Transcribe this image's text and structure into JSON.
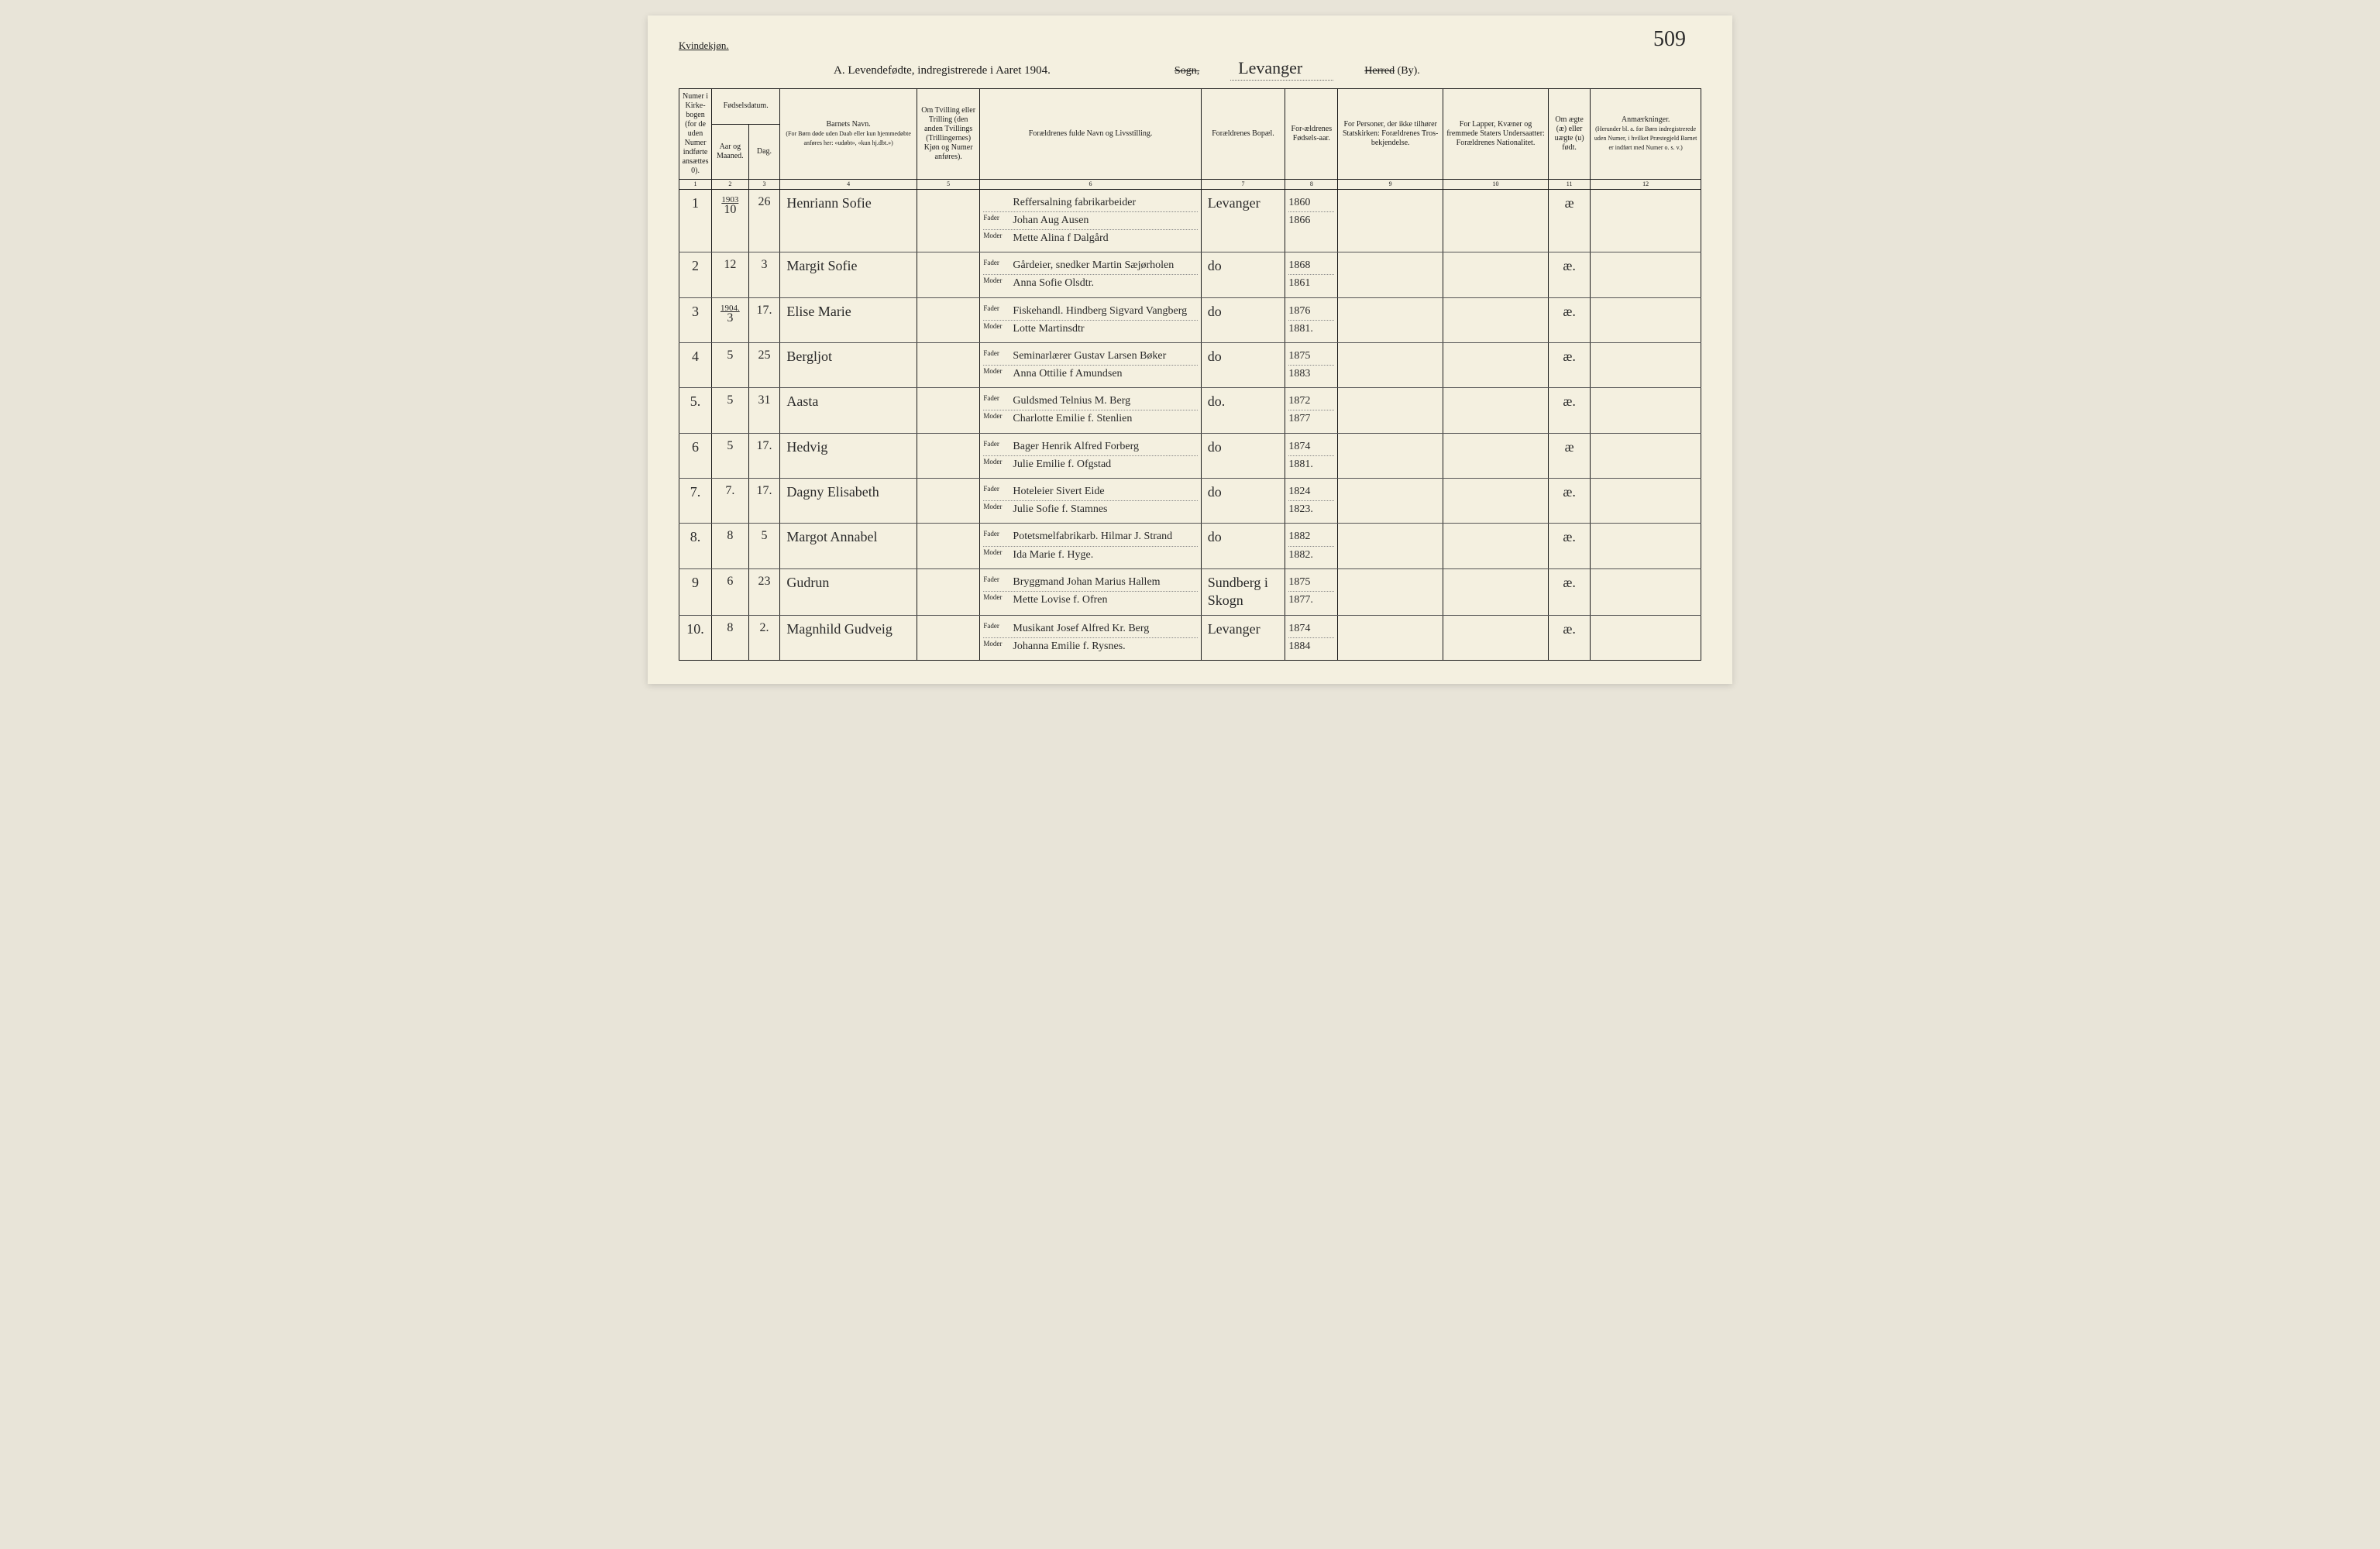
{
  "page_number": "509",
  "gender_label": "Kvindekjøn.",
  "title": "A. Levendefødte, indregistrerede i Aaret 1904.",
  "sogn_label": "Sogn,",
  "parish_name": "Levanger",
  "herred_label_strike": "Herred",
  "herred_label_by": "(By).",
  "headers": {
    "col1": "Numer i Kirke-bogen (for de uden Numer indførte ansættes 0).",
    "col2_group": "Fødselsdatum.",
    "col2": "Aar og Maaned.",
    "col3": "Dag.",
    "col4": "Barnets Navn.",
    "col4_sub": "(For Børn døde uden Daab eller kun hjemmedøbte anføres her: «udøbt», «kun hj.dbt.»)",
    "col5": "Om Tvilling eller Trilling (den anden Tvillings (Trillingernes) Kjøn og Numer anføres).",
    "col6": "Forældrenes fulde Navn og Livsstilling.",
    "col7": "Forældrenes Bopæl.",
    "col8": "For-ældrenes Fødsels-aar.",
    "col9": "For Personer, der ikke tilhører Statskirken: Forældrenes Tros-bekjendelse.",
    "col10": "For Lapper, Kvæner og fremmede Staters Undersaatter: Forældrenes Nationalitet.",
    "col11": "Om ægte (æ) eller uægte (u) født.",
    "col12": "Anmærkninger.",
    "col12_sub": "(Herunder bl. a. for Børn indregistrerede uden Numer, i hvilket Præstegjeld Barnet er indført med Numer o. s. v.)"
  },
  "col_nums": [
    "1",
    "2",
    "3",
    "4",
    "5",
    "6",
    "7",
    "8",
    "9",
    "10",
    "11",
    "12"
  ],
  "parent_labels": {
    "father": "Fader",
    "mother": "Moder"
  },
  "rows": [
    {
      "num": "1",
      "year_note": "1903",
      "month": "10",
      "day": "26",
      "child_name": "Henriann Sofie",
      "father_occ": "Reffersalning fabrikarbeider",
      "father": "Johan Aug Ausen",
      "mother": "Mette Alina f Dalgård",
      "residence": "Levanger",
      "father_year": "1860",
      "mother_year": "1866",
      "legit": "æ"
    },
    {
      "num": "2",
      "month": "12",
      "day": "3",
      "child_name": "Margit Sofie",
      "father": "Gårdeier, snedker Martin Sæjørholen",
      "mother": "Anna Sofie Olsdtr.",
      "residence": "do",
      "father_year": "1868",
      "mother_year": "1861",
      "legit": "æ."
    },
    {
      "num": "3",
      "year_note": "1904.",
      "month": "3",
      "day": "17.",
      "child_name": "Elise Marie",
      "father": "Fiskehandl. Hindberg Sigvard Vangberg",
      "mother": "Lotte Martinsdtr",
      "residence": "do",
      "father_year": "1876",
      "mother_year": "1881.",
      "legit": "æ."
    },
    {
      "num": "4",
      "month": "5",
      "day": "25",
      "child_name": "Bergljot",
      "father": "Seminarlærer Gustav Larsen Bøker",
      "mother": "Anna Ottilie f Amundsen",
      "residence": "do",
      "father_year": "1875",
      "mother_year": "1883",
      "legit": "æ."
    },
    {
      "num": "5.",
      "month": "5",
      "day": "31",
      "child_name": "Aasta",
      "father": "Guldsmed Telnius M. Berg",
      "mother": "Charlotte Emilie f. Stenlien",
      "residence": "do.",
      "father_year": "1872",
      "mother_year": "1877",
      "legit": "æ."
    },
    {
      "num": "6",
      "month": "5",
      "day": "17.",
      "child_name": "Hedvig",
      "father": "Bager Henrik Alfred Forberg",
      "mother": "Julie Emilie f. Ofgstad",
      "residence": "do",
      "father_year": "1874",
      "mother_year": "1881.",
      "legit": "æ"
    },
    {
      "num": "7.",
      "month": "7.",
      "day": "17.",
      "child_name": "Dagny Elisabeth",
      "father": "Hoteleier Sivert Eide",
      "mother": "Julie Sofie f. Stamnes",
      "residence": "do",
      "father_year": "1824",
      "mother_year": "1823.",
      "legit": "æ."
    },
    {
      "num": "8.",
      "month": "8",
      "day": "5",
      "child_name": "Margot Annabel",
      "father": "Potetsmelfabrikarb. Hilmar J. Strand",
      "mother": "Ida Marie f. Hyge.",
      "residence": "do",
      "father_year": "1882",
      "mother_year": "1882.",
      "legit": "æ."
    },
    {
      "num": "9",
      "month": "6",
      "day": "23",
      "child_name": "Gudrun",
      "father": "Bryggmand Johan Marius Hallem",
      "mother": "Mette Lovise f. Ofren",
      "residence": "Sundberg i Skogn",
      "father_year": "1875",
      "mother_year": "1877.",
      "legit": "æ."
    },
    {
      "num": "10.",
      "month": "8",
      "day": "2.",
      "child_name": "Magnhild Gudveig",
      "father": "Musikant Josef Alfred Kr. Berg",
      "mother": "Johanna Emilie f. Rysnes.",
      "residence": "Levanger",
      "father_year": "1874",
      "mother_year": "1884",
      "legit": "æ."
    }
  ]
}
